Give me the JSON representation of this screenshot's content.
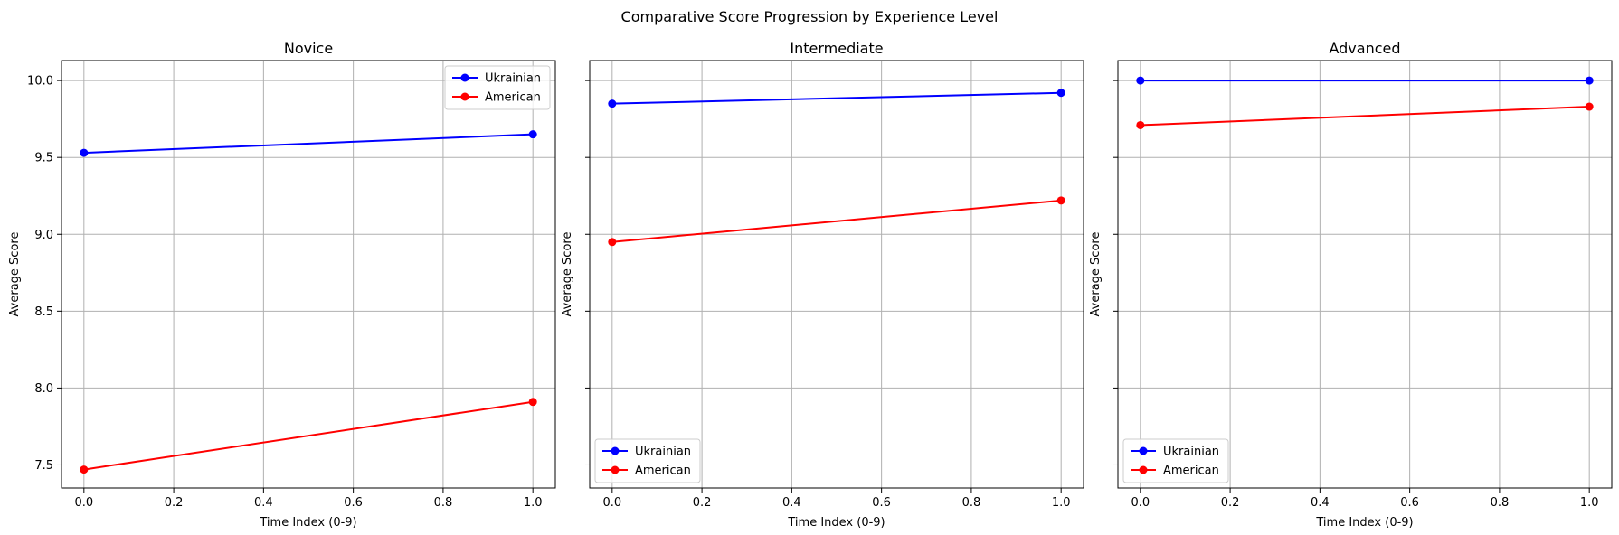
{
  "figure_title": "Comparative Score Progression by Experience Level",
  "chart_data": [
    {
      "type": "line",
      "title": "Novice",
      "xlabel": "Time Index (0-9)",
      "ylabel": "Average Score",
      "xlim": [
        -0.05,
        1.05
      ],
      "ylim": [
        7.35,
        10.13
      ],
      "xticks": [
        0.0,
        0.2,
        0.4,
        0.6,
        0.8,
        1.0
      ],
      "yticks": [
        7.5,
        8.0,
        8.5,
        9.0,
        9.5,
        10.0
      ],
      "show_ytick_labels": true,
      "grid": true,
      "legend_position": "upper right",
      "x": [
        0.0,
        1.0
      ],
      "series": [
        {
          "name": "Ukrainian",
          "color": "#0000ff",
          "values": [
            9.53,
            9.65
          ]
        },
        {
          "name": "American",
          "color": "#ff0000",
          "values": [
            7.47,
            7.91
          ]
        }
      ]
    },
    {
      "type": "line",
      "title": "Intermediate",
      "xlabel": "Time Index (0-9)",
      "ylabel": "Average Score",
      "xlim": [
        -0.05,
        1.05
      ],
      "ylim": [
        7.35,
        10.13
      ],
      "xticks": [
        0.0,
        0.2,
        0.4,
        0.6,
        0.8,
        1.0
      ],
      "yticks": [
        7.5,
        8.0,
        8.5,
        9.0,
        9.5,
        10.0
      ],
      "show_ytick_labels": false,
      "grid": true,
      "legend_position": "lower left",
      "x": [
        0.0,
        1.0
      ],
      "series": [
        {
          "name": "Ukrainian",
          "color": "#0000ff",
          "values": [
            9.85,
            9.92
          ]
        },
        {
          "name": "American",
          "color": "#ff0000",
          "values": [
            8.95,
            9.22
          ]
        }
      ]
    },
    {
      "type": "line",
      "title": "Advanced",
      "xlabel": "Time Index (0-9)",
      "ylabel": "Average Score",
      "xlim": [
        -0.05,
        1.05
      ],
      "ylim": [
        7.35,
        10.13
      ],
      "xticks": [
        0.0,
        0.2,
        0.4,
        0.6,
        0.8,
        1.0
      ],
      "yticks": [
        7.5,
        8.0,
        8.5,
        9.0,
        9.5,
        10.0
      ],
      "show_ytick_labels": false,
      "grid": true,
      "legend_position": "lower left",
      "x": [
        0.0,
        1.0
      ],
      "series": [
        {
          "name": "Ukrainian",
          "color": "#0000ff",
          "values": [
            10.0,
            10.0
          ]
        },
        {
          "name": "American",
          "color": "#ff0000",
          "values": [
            9.71,
            9.83
          ]
        }
      ]
    }
  ]
}
